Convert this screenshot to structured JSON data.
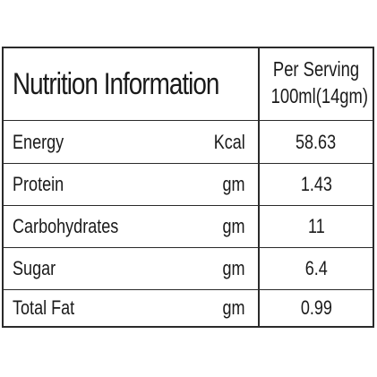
{
  "table": {
    "title": "Nutrition Information",
    "serving_line1": "Per Serving",
    "serving_line2": "100ml(14gm)",
    "rows": [
      {
        "name": "Energy",
        "unit": "Kcal",
        "value": "58.63"
      },
      {
        "name": "Protein",
        "unit": "gm",
        "value": "1.43"
      },
      {
        "name": "Carbohydrates",
        "unit": "gm",
        "value": "11"
      },
      {
        "name": "Sugar",
        "unit": "gm",
        "value": "6.4"
      },
      {
        "name": "Total Fat",
        "unit": "gm",
        "value": "0.99"
      }
    ]
  }
}
